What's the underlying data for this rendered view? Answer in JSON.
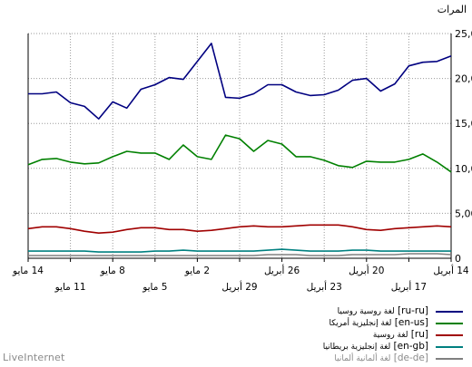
{
  "chart_data": {
    "type": "line",
    "ylabel": "المرات",
    "ylim": [
      0,
      25000
    ],
    "yticks": [
      0,
      5000,
      10000,
      15000,
      20000,
      25000
    ],
    "ytick_labels": [
      "0",
      "5,000",
      "10,000",
      "15,000",
      "20,000",
      "25,000"
    ],
    "grid": true,
    "xtick_labels_upper": [
      "14 مايو",
      "8 مايو",
      "2 مايو",
      "26 أبريل",
      "20 أبريل",
      "14 أبريل"
    ],
    "xtick_labels_lower": [
      "11 مايو",
      "5 مايو",
      "29 أبريل",
      "23 أبريل",
      "17 أبريل"
    ],
    "x_order": "right-to-left",
    "series": [
      {
        "name": "ru-ru",
        "desc": "لغة روسية  روسيا",
        "color": "#000080",
        "values": [
          18300,
          18300,
          18500,
          17300,
          16900,
          15500,
          17400,
          16700,
          18800,
          19300,
          20100,
          19900,
          21900,
          23900,
          17900,
          17800,
          18300,
          19300,
          19300,
          18500,
          18100,
          18200,
          18700,
          19800,
          20000,
          18600,
          19400,
          21400,
          21800,
          21900,
          22500
        ]
      },
      {
        "name": "en-us",
        "desc": "لغة إنجليزية  أمريكا",
        "color": "#008000",
        "values": [
          10400,
          11000,
          11100,
          10700,
          10500,
          10600,
          11300,
          11900,
          11700,
          11700,
          11000,
          12600,
          11300,
          11000,
          13700,
          13300,
          11900,
          13100,
          12700,
          11300,
          11300,
          10900,
          10300,
          10100,
          10800,
          10700,
          10700,
          11000,
          11600,
          10700,
          9600
        ]
      },
      {
        "name": "ru",
        "desc": "لغة روسية",
        "color": "#a00000",
        "values": [
          3300,
          3500,
          3500,
          3300,
          3000,
          2800,
          2900,
          3200,
          3400,
          3400,
          3200,
          3200,
          3000,
          3100,
          3300,
          3500,
          3600,
          3500,
          3500,
          3600,
          3700,
          3700,
          3700,
          3500,
          3200,
          3100,
          3300,
          3400,
          3500,
          3600,
          3500
        ]
      },
      {
        "name": "en-gb",
        "desc": "لغة إنجليزية  بريطانيا",
        "color": "#008080",
        "values": [
          800,
          800,
          800,
          800,
          800,
          700,
          700,
          700,
          700,
          800,
          800,
          900,
          800,
          800,
          800,
          800,
          800,
          900,
          1000,
          900,
          800,
          800,
          800,
          900,
          900,
          800,
          800,
          800,
          800,
          800,
          800
        ]
      },
      {
        "name": "de-de",
        "desc": "لغة ألمانية  ألمانيا",
        "color": "#808080",
        "values": [
          300,
          300,
          300,
          300,
          300,
          300,
          300,
          300,
          300,
          300,
          300,
          300,
          300,
          300,
          300,
          300,
          300,
          400,
          400,
          400,
          300,
          300,
          300,
          400,
          400,
          400,
          400,
          500,
          500,
          500,
          400
        ]
      }
    ]
  },
  "footer": {
    "watermark": "LiveInternet"
  }
}
